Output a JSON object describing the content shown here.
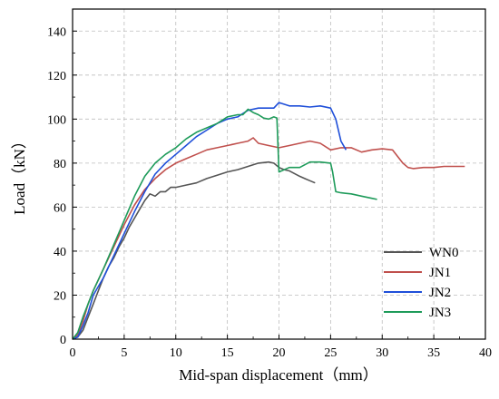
{
  "chart_data": {
    "type": "line",
    "xlabel": "Mid-span displacement（mm）",
    "ylabel": "Load（kN）",
    "xlim": [
      0,
      40
    ],
    "ylim": [
      0,
      150
    ],
    "xticks": [
      0,
      5,
      10,
      15,
      20,
      25,
      30,
      35,
      40
    ],
    "yticks": [
      0,
      20,
      40,
      60,
      80,
      100,
      120,
      140
    ],
    "grid": true,
    "legend_position": "bottom-right",
    "series": [
      {
        "name": "WN0",
        "color": "#555555",
        "x": [
          0,
          0.5,
          1,
          1.5,
          2,
          2.5,
          3,
          3.5,
          4,
          4.5,
          5,
          5.5,
          6,
          6.5,
          7,
          7.5,
          8,
          8.5,
          9,
          9.5,
          10,
          11,
          12,
          13,
          14,
          15,
          16,
          17,
          18,
          19,
          19.5,
          20,
          20.5,
          21,
          22,
          22.5,
          23,
          23.5
        ],
        "y": [
          0,
          1,
          4,
          10,
          16,
          22,
          28,
          33,
          37,
          42,
          46,
          51,
          55,
          59,
          63,
          66,
          65,
          67,
          67,
          69,
          69,
          70,
          71,
          73,
          74.5,
          76,
          77,
          78.5,
          80,
          80.5,
          80,
          78,
          77,
          76.5,
          74,
          73,
          72,
          71
        ]
      },
      {
        "name": "JN1",
        "color": "#c0504d",
        "x": [
          0,
          0.5,
          1,
          1.5,
          2,
          3,
          4,
          5,
          6,
          7,
          8,
          9,
          10,
          11,
          12,
          13,
          14,
          15,
          16,
          17,
          17.5,
          18,
          19,
          20,
          21,
          22,
          23,
          24,
          25,
          26,
          27,
          28,
          29,
          30,
          31,
          32,
          32.5,
          33,
          34,
          35,
          36,
          37,
          38
        ],
        "y": [
          0,
          2,
          8,
          16,
          22,
          32,
          42,
          52,
          61,
          68,
          73,
          77,
          80,
          82,
          84,
          86,
          87,
          88,
          89,
          90,
          91.5,
          89,
          88,
          87,
          88,
          89,
          90,
          89,
          86,
          87,
          87,
          85,
          86,
          86.5,
          86,
          80,
          78,
          77.5,
          78,
          78,
          78.5,
          78.5,
          78.5
        ]
      },
      {
        "name": "JN2",
        "color": "#1f4fd9",
        "x": [
          0,
          0.5,
          1,
          1.5,
          2,
          3,
          4,
          5,
          6,
          7,
          8,
          9,
          10,
          11,
          12,
          13,
          14,
          15,
          16,
          17,
          18,
          19,
          19.5,
          20,
          21,
          22,
          23,
          24,
          25,
          25.5,
          26,
          26.5
        ],
        "y": [
          0,
          1,
          6,
          12,
          20,
          28,
          38,
          48,
          58,
          67,
          75,
          80,
          84,
          88,
          92,
          95,
          98,
          100,
          101,
          104,
          105,
          105,
          105,
          107.5,
          106,
          106,
          105.5,
          106,
          105,
          100,
          90,
          86
        ]
      },
      {
        "name": "JN3",
        "color": "#1e9b5a",
        "x": [
          0,
          0.5,
          1,
          1.5,
          2,
          3,
          4,
          5,
          6,
          7,
          8,
          9,
          10,
          11,
          12,
          13,
          14,
          15,
          16,
          16.5,
          17,
          17.5,
          18,
          18.5,
          19,
          19.5,
          19.8,
          20,
          21,
          22,
          23,
          24,
          25,
          25.2,
          25.5,
          26,
          27,
          28,
          29,
          29.5
        ],
        "y": [
          0,
          3,
          10,
          16,
          22,
          32,
          43,
          54,
          65,
          74,
          80,
          84,
          87,
          91,
          94,
          96,
          98,
          101,
          102,
          102,
          104.5,
          103,
          102,
          100.5,
          100,
          101,
          100.5,
          76,
          78,
          78,
          80.5,
          80.5,
          80,
          76,
          67,
          66.5,
          66,
          65,
          64,
          63.5
        ]
      }
    ]
  }
}
